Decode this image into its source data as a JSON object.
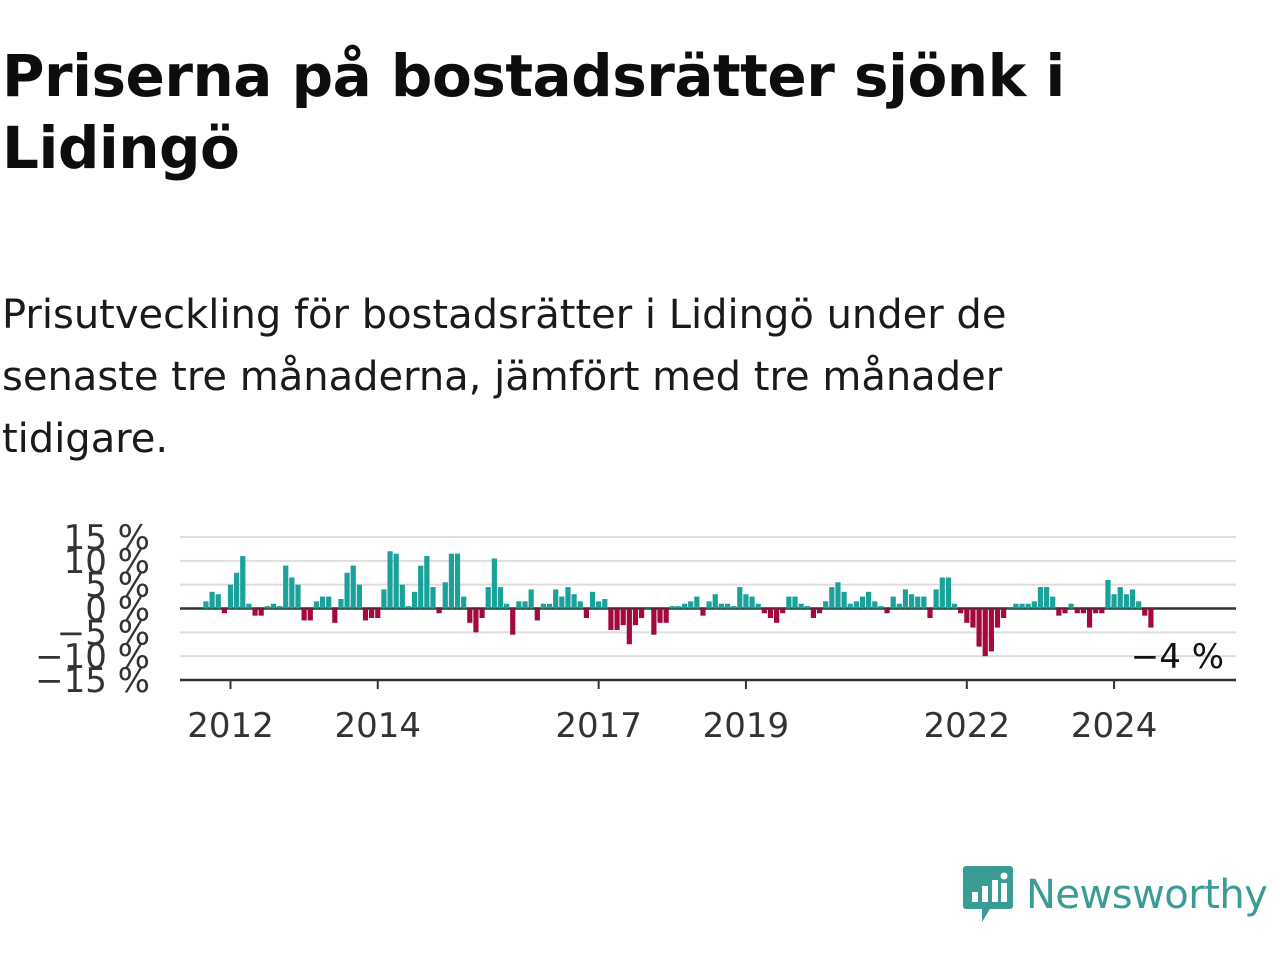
{
  "title": "Priserna på bostadsrätter sjönk i Lidingö",
  "subtitle": "Prisutveckling för bostadsrätter i Lidingö under de senaste tre månaderna, jämfört med tre månader tidigare.",
  "brand": {
    "name": "Newsworthy",
    "color": "#3a9c94",
    "icon": "newsworthy-logo-icon"
  },
  "colors": {
    "positive": "#1aa19a",
    "negative": "#a3083e",
    "zero_line": "#333333",
    "grid": "#dddddd",
    "axis": "#333333"
  },
  "chart_data": {
    "type": "bar",
    "x_start": "2011-09",
    "x_unit": "month",
    "ylim": [
      -15,
      15
    ],
    "y_ticks": [
      {
        "value": 15,
        "label": "15 %"
      },
      {
        "value": 10,
        "label": "10 %"
      },
      {
        "value": 5,
        "label": "5 %"
      },
      {
        "value": 0,
        "label": "0 %"
      },
      {
        "value": -5,
        "label": "−5 %"
      },
      {
        "value": -10,
        "label": "−10 %"
      },
      {
        "value": -15,
        "label": "−15 %"
      }
    ],
    "x_ticks": [
      {
        "month": "2012-01",
        "label": "2012"
      },
      {
        "month": "2014-01",
        "label": "2014"
      },
      {
        "month": "2017-01",
        "label": "2017"
      },
      {
        "month": "2019-01",
        "label": "2019"
      },
      {
        "month": "2022-01",
        "label": "2022"
      },
      {
        "month": "2024-01",
        "label": "2024"
      }
    ],
    "grid": true,
    "end_label": "−4 %",
    "values": [
      1.5,
      3.5,
      3,
      -1,
      5,
      7.5,
      11,
      1,
      -1.5,
      -1.5,
      0.5,
      1,
      0.5,
      9,
      6.5,
      5,
      -2.5,
      -2.5,
      1.5,
      2.5,
      2.5,
      -3,
      2,
      7.5,
      9,
      5,
      -2.5,
      -2,
      -2,
      4,
      12,
      11.5,
      5,
      0.5,
      3.5,
      9,
      11,
      4.5,
      -1,
      5.5,
      11.5,
      11.5,
      2.5,
      -3,
      -5,
      -2,
      4.5,
      10.5,
      4.5,
      1,
      -5.5,
      1.5,
      1.5,
      4,
      -2.5,
      1,
      1,
      4,
      2.5,
      4.5,
      3,
      1.5,
      -2,
      3.5,
      1.5,
      2,
      -4.5,
      -4.5,
      -3.5,
      -7.5,
      -3.5,
      -2,
      0,
      -5.5,
      -3,
      -3,
      0.5,
      0.5,
      1,
      1.5,
      2.5,
      -1.5,
      1.5,
      3,
      1,
      1,
      0.5,
      4.5,
      3,
      2.5,
      1,
      -1,
      -2,
      -3,
      -1,
      2.5,
      2.5,
      1,
      0.5,
      -2,
      -1,
      1.5,
      4.5,
      5.5,
      3.5,
      1,
      1.5,
      2.5,
      3.5,
      1.5,
      0.5,
      -1,
      2.5,
      1,
      4,
      3,
      2.5,
      2.5,
      -2,
      4,
      6.5,
      6.5,
      1,
      -1,
      -3,
      -4,
      -8,
      -10,
      -9,
      -4,
      -2,
      0,
      1,
      1,
      1,
      1.5,
      4.5,
      4.5,
      2.5,
      -1.5,
      -1,
      1,
      -1,
      -1,
      -4,
      -1,
      -1,
      6,
      3,
      4.5,
      3,
      4,
      1.5,
      -1.5,
      -4
    ]
  }
}
